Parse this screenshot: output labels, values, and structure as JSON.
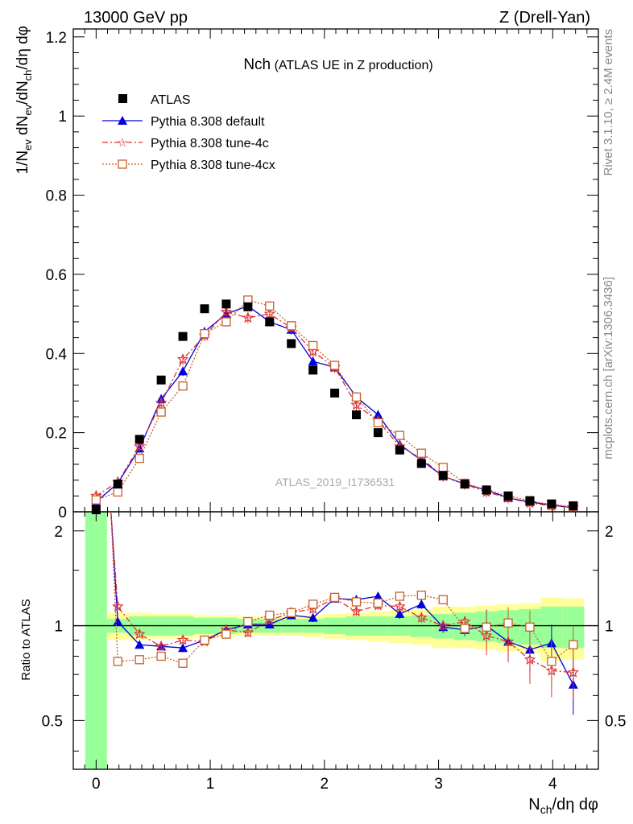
{
  "header": {
    "energy_label": "13000 GeV pp",
    "process_label": "Z (Drell-Yan)"
  },
  "title": {
    "main": "Nch",
    "sub": "(ATLAS UE in Z production)"
  },
  "side_labels": {
    "rivet": "Rivet 3.1.10, ≥ 2.4M events",
    "mcplots": "mcplots.cern.ch [arXiv:1306.3436]"
  },
  "analysis_id": "ATLAS_2019_I1736531",
  "colors": {
    "data": "#000000",
    "default": "#0000dd",
    "tune4c": "#dd3333",
    "tune4cx": "#c8602a",
    "band_inner": "#99ff99",
    "band_outer": "#ffff99"
  },
  "chart_data": {
    "type": "scatter",
    "title": "Nch (ATLAS UE in Z production)",
    "xlabel": "N_ch/dη dφ",
    "ylabel": "1/N_ev dN_ev/dN_ch/dη dφ",
    "ratio_ylabel": "Ratio to ATLAS",
    "xlim": [
      -0.2,
      4.4
    ],
    "ylim": [
      0,
      1.22
    ],
    "ratio_ylim": [
      0.35,
      2.3
    ],
    "x_ticks": [
      "0",
      "1",
      "2",
      "3",
      "4"
    ],
    "y_ticks": [
      "0",
      "0.2",
      "0.4",
      "0.6",
      "0.8",
      "1",
      "1.2"
    ],
    "ratio_ticks": [
      "0.5",
      "1",
      "2"
    ],
    "x": [
      0,
      0.19,
      0.38,
      0.57,
      0.76,
      0.95,
      1.14,
      1.33,
      1.52,
      1.71,
      1.9,
      2.09,
      2.28,
      2.47,
      2.66,
      2.85,
      3.04,
      3.23,
      3.42,
      3.61,
      3.8,
      3.99,
      4.18
    ],
    "legend": {
      "data": "ATLAS",
      "default": "Pythia 8.308 default",
      "tune4c": "Pythia 8.308 tune-4c",
      "tune4cx": "Pythia 8.308 tune-4cx"
    },
    "series": [
      {
        "name": "ATLAS",
        "values": [
          0.005,
          0.07,
          0.183,
          0.333,
          0.443,
          0.513,
          0.525,
          0.518,
          0.48,
          0.425,
          0.358,
          0.3,
          0.245,
          0.2,
          0.156,
          0.122,
          0.092,
          0.07,
          0.055,
          0.04,
          0.028,
          0.02,
          0.015
        ]
      },
      {
        "name": "Pythia 8.308 default",
        "values": [
          0.025,
          0.072,
          0.16,
          0.285,
          0.355,
          0.455,
          0.5,
          0.52,
          0.48,
          0.46,
          0.38,
          0.365,
          0.29,
          0.245,
          0.17,
          0.13,
          0.09,
          0.07,
          0.055,
          0.035,
          0.025,
          0.017,
          0.01
        ]
      },
      {
        "name": "Pythia 8.308 tune-4c",
        "values": [
          0.04,
          0.075,
          0.165,
          0.275,
          0.385,
          0.445,
          0.505,
          0.49,
          0.5,
          0.465,
          0.405,
          0.365,
          0.27,
          0.23,
          0.165,
          0.135,
          0.09,
          0.07,
          0.05,
          0.035,
          0.022,
          0.015,
          0.011
        ]
      },
      {
        "name": "Pythia 8.308 tune-4cx",
        "values": [
          0.03,
          0.05,
          0.135,
          0.252,
          0.318,
          0.45,
          0.48,
          0.535,
          0.52,
          0.47,
          0.42,
          0.37,
          0.29,
          0.225,
          0.193,
          0.148,
          0.112,
          0.072,
          0.055,
          0.04,
          0.028,
          0.018,
          0.014
        ]
      }
    ],
    "ratio_series": [
      {
        "name": "Pythia 8.308 default",
        "values": [
          null,
          1.03,
          0.87,
          0.86,
          0.85,
          0.9,
          0.97,
          1.01,
          1.01,
          1.08,
          1.06,
          1.22,
          1.21,
          1.24,
          1.09,
          1.17,
          0.99,
          0.97,
          1.0,
          0.89,
          0.84,
          0.88,
          0.65
        ]
      },
      {
        "name": "Pythia 8.308 tune-4c",
        "values": [
          null,
          1.15,
          0.94,
          0.86,
          0.9,
          0.89,
          0.97,
          0.95,
          1.04,
          1.1,
          1.13,
          1.22,
          1.11,
          1.16,
          1.15,
          1.06,
          1.0,
          1.03,
          0.93,
          0.89,
          0.78,
          0.72,
          0.71
        ]
      },
      {
        "name": "Pythia 8.308 tune-4cx",
        "values": [
          null,
          0.77,
          0.78,
          0.8,
          0.76,
          0.9,
          0.94,
          1.03,
          1.08,
          1.1,
          1.17,
          1.23,
          1.19,
          1.18,
          1.24,
          1.25,
          1.21,
          0.98,
          0.99,
          1.02,
          0.99,
          0.77,
          0.87
        ]
      }
    ],
    "band_inner": [
      2.05,
      0.05,
      0.07,
      0.07,
      0.07,
      0.06,
      0.06,
      0.05,
      0.05,
      0.05,
      0.05,
      0.06,
      0.07,
      0.07,
      0.07,
      0.08,
      0.09,
      0.1,
      0.11,
      0.12,
      0.13,
      0.15,
      0.15
    ],
    "band_outer": [
      2.4,
      0.1,
      0.1,
      0.09,
      0.09,
      0.08,
      0.08,
      0.07,
      0.07,
      0.07,
      0.08,
      0.09,
      0.1,
      0.11,
      0.12,
      0.13,
      0.15,
      0.15,
      0.16,
      0.17,
      0.18,
      0.23,
      0.22
    ]
  }
}
